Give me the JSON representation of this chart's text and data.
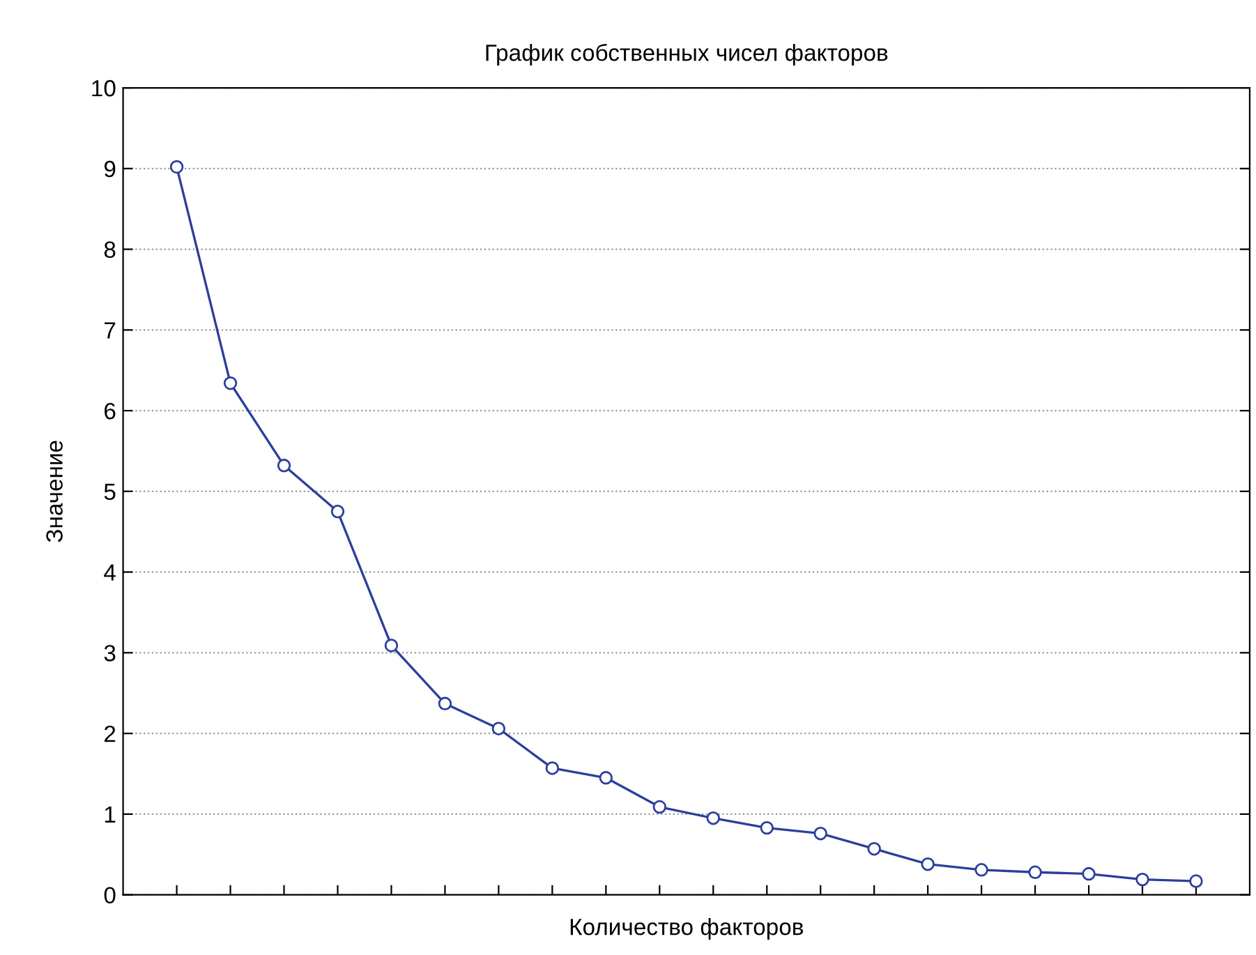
{
  "chart_data": {
    "type": "line",
    "title": "График собственных чисел факторов",
    "xlabel": "Количество факторов",
    "ylabel": "Значение",
    "categories": [
      null,
      null,
      null,
      null,
      null,
      null,
      null,
      null,
      null,
      null,
      null,
      null,
      null,
      null,
      null,
      null,
      null,
      null,
      null,
      null
    ],
    "series": [
      {
        "color": "#2b3f9c",
        "values": [
          9.02,
          6.34,
          5.32,
          4.75,
          3.09,
          2.37,
          2.06,
          1.57,
          1.45,
          1.09,
          0.95,
          0.83,
          0.76,
          0.57,
          0.38,
          0.31,
          0.28,
          0.26,
          0.19,
          0.17
        ]
      }
    ],
    "ylim": [
      0,
      10
    ],
    "yticks": [
      0,
      1,
      2,
      3,
      4,
      5,
      6,
      7,
      8,
      9,
      10
    ],
    "grid": "y",
    "marker": "circle",
    "line_style": "solid",
    "tick_labels": "y"
  }
}
